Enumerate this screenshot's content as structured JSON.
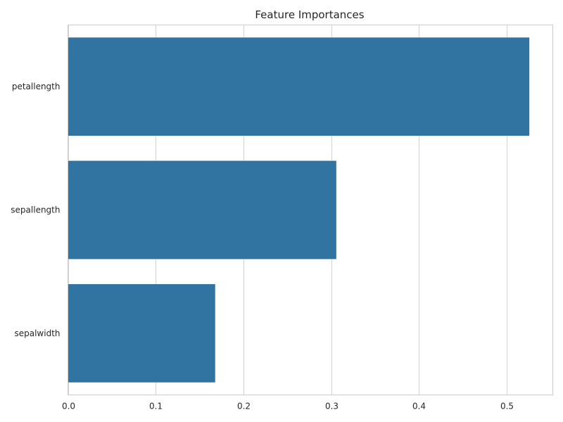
{
  "chart_data": {
    "type": "bar",
    "orientation": "horizontal",
    "title": "Feature Importances",
    "xlabel": "",
    "ylabel": "",
    "categories": [
      "petallength",
      "sepallength",
      "sepalwidth"
    ],
    "values": [
      0.526,
      0.306,
      0.168
    ],
    "xlim": [
      0,
      0.5525
    ],
    "xticks": [
      0.0,
      0.1,
      0.2,
      0.3,
      0.4,
      0.5
    ],
    "xtick_labels": [
      "0.0",
      "0.1",
      "0.2",
      "0.3",
      "0.4",
      "0.5"
    ],
    "grid": true,
    "colors": {
      "bar": "#3274a1",
      "grid": "#d3d3d3",
      "frame": "#cccccc",
      "text": "#262626"
    }
  }
}
